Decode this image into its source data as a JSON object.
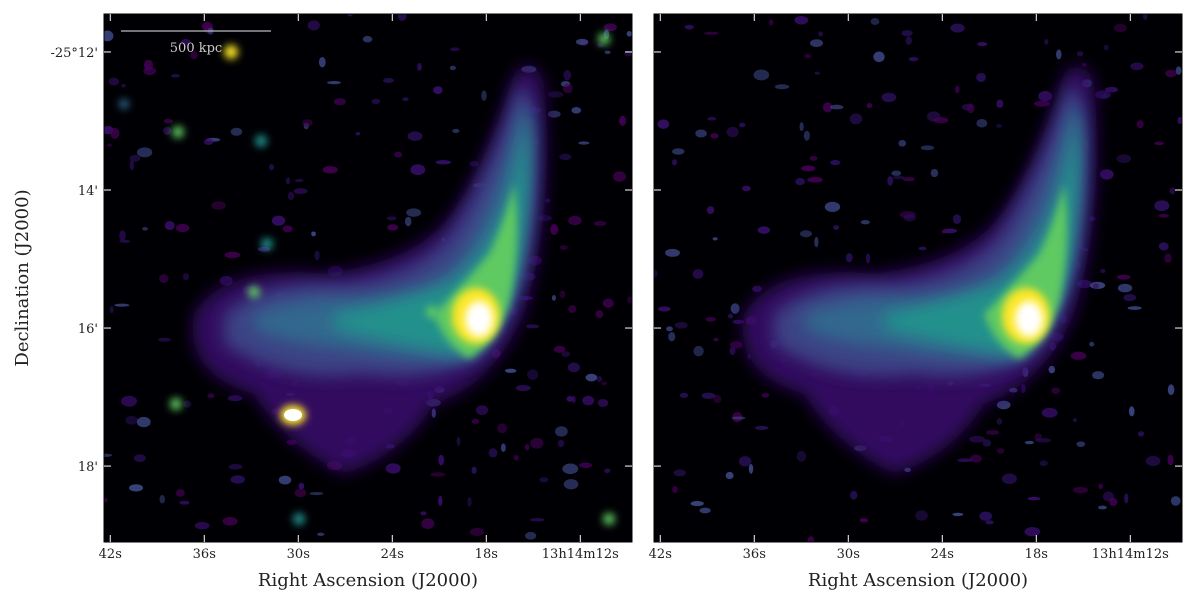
{
  "chart_data": [
    {
      "type": "image",
      "xlabel": "Right Ascension (J2000)",
      "ylabel": "Declination (J2000)",
      "annotation": "500 kpc",
      "xlim": [
        42.4,
        8.7
      ],
      "ylim": [
        19.1,
        11.45
      ],
      "xticks": [
        {
          "value": 42,
          "label": "42s"
        },
        {
          "value": 36,
          "label": "36s"
        },
        {
          "value": 30,
          "label": "30s"
        },
        {
          "value": 24,
          "label": "24s"
        },
        {
          "value": 18,
          "label": "18s"
        },
        {
          "value": 12,
          "label": "13h14m12s"
        }
      ],
      "yticks": [
        {
          "value": 12,
          "label": "-25°12'"
        },
        {
          "value": 14,
          "label": "14'"
        },
        {
          "value": 16,
          "label": "16'"
        },
        {
          "value": 18,
          "label": "18'"
        }
      ]
    },
    {
      "type": "image",
      "xlabel": "Right Ascension (J2000)",
      "xlim": [
        42.4,
        8.7
      ],
      "ylim": [
        19.1,
        11.45
      ],
      "xticks": [
        {
          "value": 42,
          "label": "42s"
        },
        {
          "value": 36,
          "label": "36s"
        },
        {
          "value": 30,
          "label": "30s"
        },
        {
          "value": 24,
          "label": "24s"
        },
        {
          "value": 18,
          "label": "18s"
        },
        {
          "value": 12,
          "label": "13h14m12s"
        }
      ],
      "yticks": [
        12,
        14,
        16,
        18
      ]
    }
  ]
}
